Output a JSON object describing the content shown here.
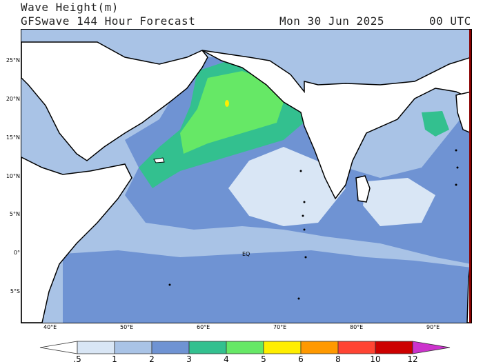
{
  "header": {
    "variable": "Wave Height(m)",
    "model": "GFSwave 144 Hour Forecast",
    "date": "Mon 30 Jun 2025",
    "time": "00 UTC"
  },
  "map": {
    "region": "Indian Ocean",
    "lat_labels": [
      "25°N",
      "20°N",
      "15°N",
      "10°N",
      "5°N",
      "0°",
      "5°S"
    ],
    "lon_labels": [
      "40°E",
      "50°E",
      "60°E",
      "70°E",
      "80°E",
      "90°E"
    ],
    "equator_label": "EQ",
    "colors": {
      "land": "#ffffff",
      "bin_0_5_1": "#d9e6f5",
      "bin_1_2": "#a9c3e6",
      "bin_2_3": "#6f93d3",
      "bin_3_4": "#33c08f",
      "bin_4_5": "#66e866",
      "bin_5_6": "#ffee00"
    }
  },
  "colorbar": {
    "labels": [
      ".5",
      "1",
      "2",
      "3",
      "4",
      "5",
      "6",
      "8",
      "10",
      "12"
    ],
    "colors": [
      "#ffffff",
      "#d9e6f5",
      "#a9c3e6",
      "#6f93d3",
      "#33c08f",
      "#66e866",
      "#ffee00",
      "#ff9900",
      "#ff4433",
      "#cc0000",
      "#cc33cc"
    ]
  }
}
